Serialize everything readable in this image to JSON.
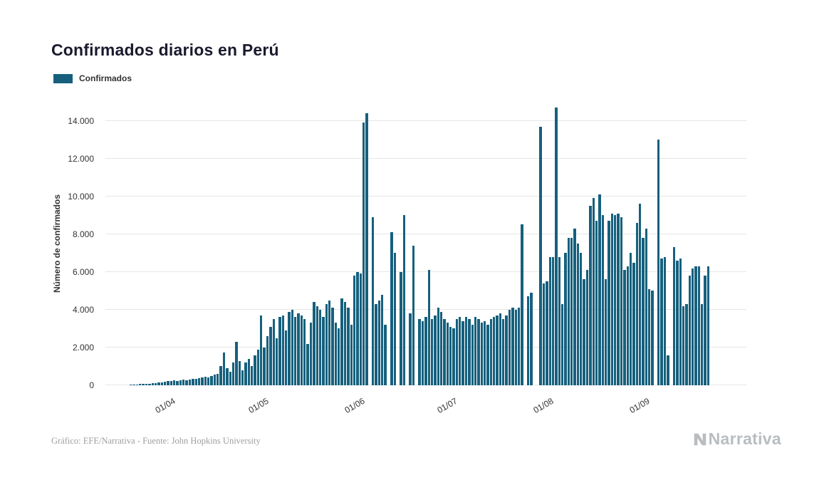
{
  "page": {
    "title": "Confirmados diarios en Perú"
  },
  "legend": {
    "label": "Confirmados"
  },
  "axes": {
    "y_title": "Número de confirmados",
    "y_ticks": [
      "0",
      "2.000",
      "4.000",
      "6.000",
      "8.000",
      "10.000",
      "12.000",
      "14.000"
    ],
    "x_ticks": [
      "01/04",
      "01/05",
      "01/06",
      "01/07",
      "01/08",
      "01/09"
    ]
  },
  "footer": {
    "credit": "Gráfico: EFE/Narrativa - Fuente: John Hopkins University",
    "brand": "Narrativa"
  },
  "colors": {
    "bar": "#16607d",
    "grid": "#e6e6e6",
    "title": "#1a1a2e",
    "axis_text": "#333333",
    "footer_text": "#9e9e9e",
    "brand_text": "#b9bdc0"
  },
  "chart_data": {
    "type": "bar",
    "title": "Confirmados diarios en Perú",
    "series_name": "Confirmados",
    "ylabel": "Número de confirmados",
    "ylim": [
      0,
      15000
    ],
    "y_tick_step": 2000,
    "grid": "horizontal",
    "legend_position": "top-left",
    "x_start_date": "18/03",
    "x_tick_labels": [
      "01/04",
      "01/05",
      "01/06",
      "01/07",
      "01/08",
      "01/09"
    ],
    "x_tick_indices": [
      14,
      44,
      75,
      105,
      136,
      167
    ],
    "values": [
      30,
      40,
      45,
      60,
      70,
      80,
      90,
      110,
      130,
      150,
      170,
      190,
      210,
      230,
      250,
      230,
      280,
      300,
      270,
      320,
      350,
      330,
      380,
      420,
      450,
      400,
      480,
      550,
      600,
      1000,
      1750,
      900,
      700,
      1200,
      2300,
      1300,
      800,
      1200,
      1400,
      1000,
      1600,
      1900,
      3700,
      2000,
      2600,
      3100,
      3500,
      2500,
      3600,
      3700,
      2900,
      3900,
      4000,
      3600,
      3800,
      3700,
      3500,
      2200,
      3300,
      4400,
      4200,
      4000,
      3600,
      4300,
      4500,
      4100,
      3300,
      3000,
      4600,
      4400,
      4100,
      3200,
      5800,
      6000,
      5900,
      13900,
      14400,
      0,
      8900,
      4300,
      4500,
      4800,
      3200,
      0,
      8100,
      7000,
      0,
      6000,
      9000,
      0,
      3800,
      7400,
      0,
      3500,
      3400,
      3600,
      6100,
      3500,
      3700,
      4100,
      3900,
      3500,
      3300,
      3100,
      3000,
      3500,
      3600,
      3400,
      3600,
      3500,
      3200,
      3600,
      3500,
      3300,
      3400,
      3200,
      3500,
      3600,
      3700,
      3800,
      3500,
      3700,
      4000,
      4100,
      4000,
      4100,
      8500,
      0,
      4700,
      4900,
      0,
      0,
      13700,
      5400,
      5500,
      6800,
      6800,
      14700,
      6800,
      4300,
      7000,
      7800,
      7800,
      8300,
      7500,
      7000,
      5600,
      6100,
      9500,
      9900,
      8700,
      10100,
      9000,
      5600,
      8700,
      9100,
      9000,
      9100,
      8900,
      6100,
      6300,
      7000,
      6500,
      8600,
      9600,
      7800,
      8300,
      5100,
      5000,
      0,
      13000,
      6700,
      6800,
      1600,
      0,
      7300,
      6600,
      6700,
      4200,
      4300,
      5800,
      6200,
      6300,
      6300,
      4300,
      5800,
      6300
    ]
  }
}
